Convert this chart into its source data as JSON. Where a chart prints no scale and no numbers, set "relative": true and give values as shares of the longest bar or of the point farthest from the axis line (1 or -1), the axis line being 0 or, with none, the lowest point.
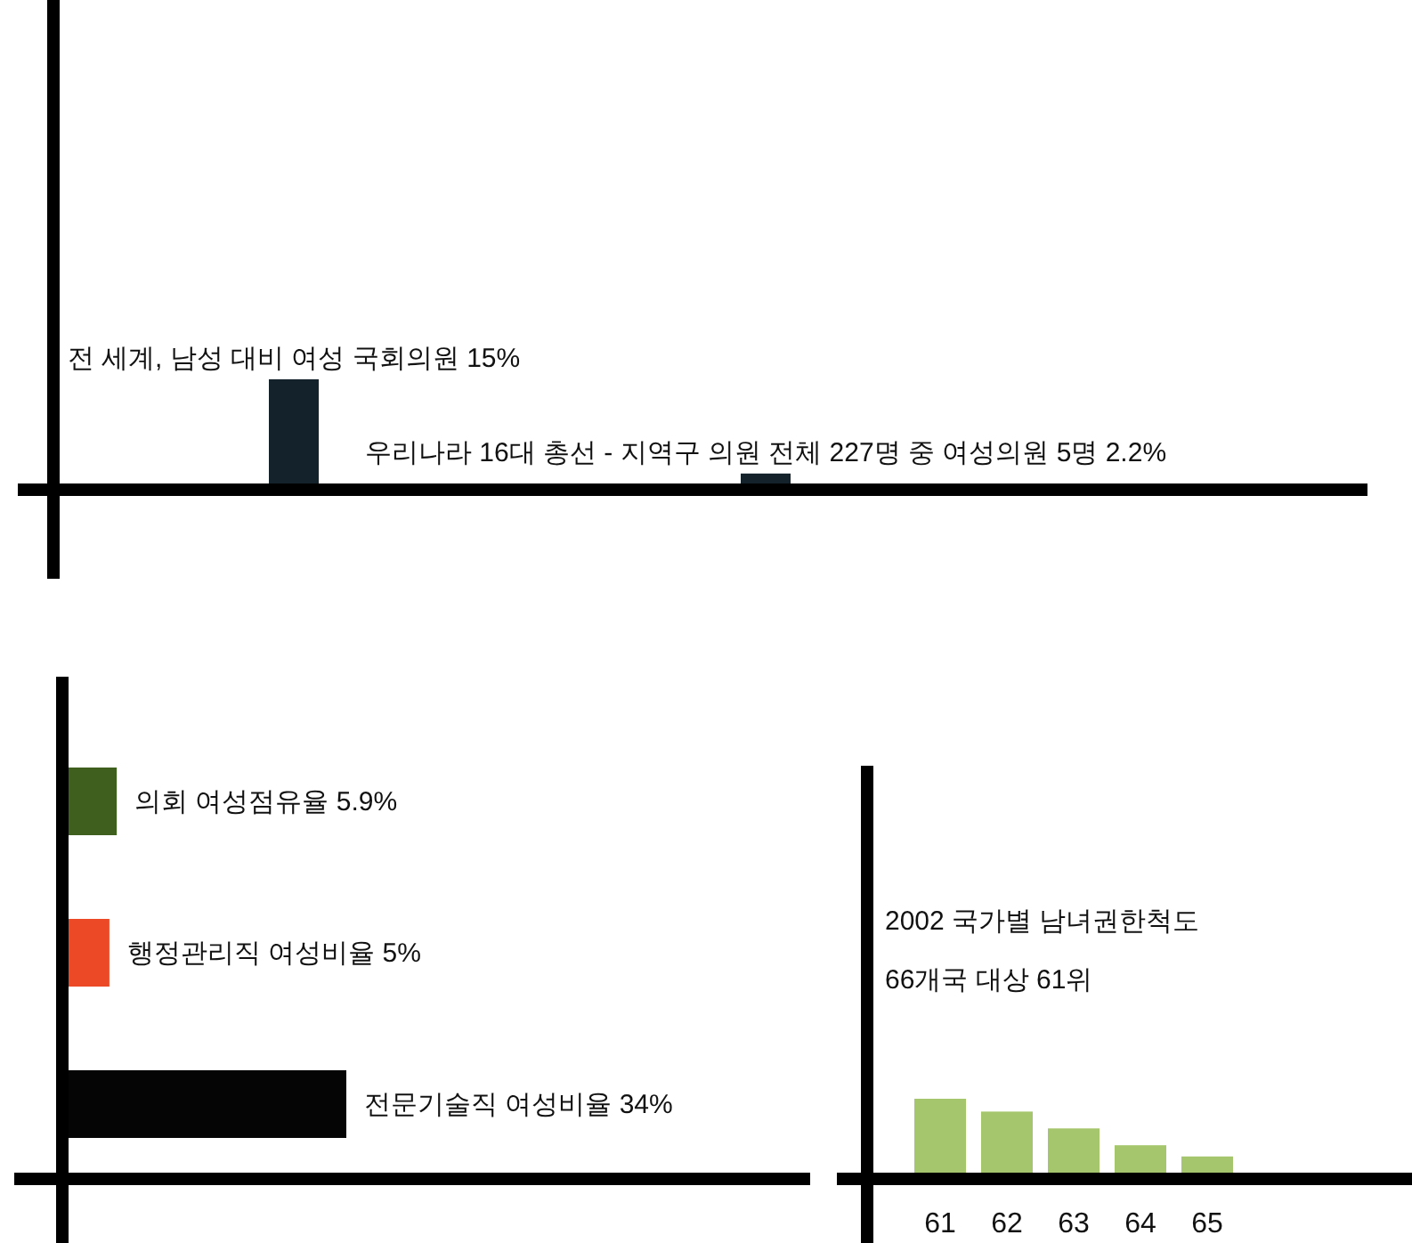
{
  "chart_data": [
    {
      "type": "bar",
      "categories": [
        null,
        null
      ],
      "values": [
        15,
        2.2
      ],
      "value_labels": [
        "전 세계, 남성 대비 여성 국회의원 15%",
        "우리나라 16대 총선 - 지역구 의원 전체 227명 중 여성의원 5명  2.2%"
      ],
      "color": "#14232b"
    },
    {
      "type": "bar",
      "orientation": "horizontal",
      "categories": [
        null,
        null,
        null
      ],
      "values": [
        5.9,
        5,
        34
      ],
      "value_labels": [
        "의회 여성점유율 5.9%",
        "행정관리직 여성비율 5%",
        "전문기술직 여성비율 34%"
      ],
      "colors": [
        "#3f5f1f",
        "#ec4a26",
        "#050505"
      ]
    },
    {
      "type": "bar",
      "title": "2002  국가별 남녀권한척도",
      "subtitle": "66개국 대상 61위",
      "categories": [
        "61",
        "62",
        "63",
        "64",
        "65"
      ],
      "values": [
        1,
        0.84,
        0.63,
        0.42,
        0.28
      ],
      "relative": true,
      "color": "#a5c66c"
    }
  ]
}
